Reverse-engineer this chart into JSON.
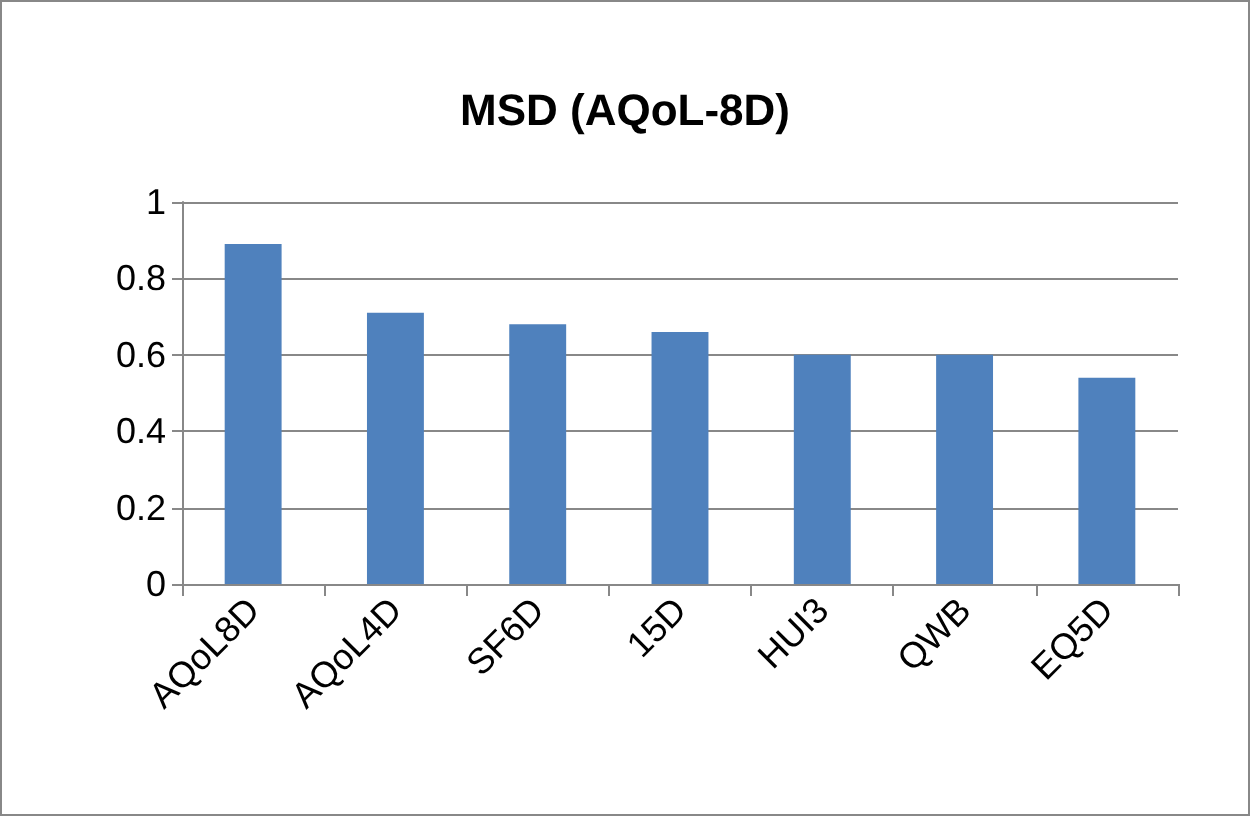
{
  "chart_data": {
    "type": "bar",
    "title": "MSD (AQoL-8D)",
    "categories": [
      "AQoL8D",
      "AQoL4D",
      "SF6D",
      "15D",
      "HUI3",
      "QWB",
      "EQ5D"
    ],
    "values": [
      0.89,
      0.71,
      0.68,
      0.66,
      0.6,
      0.6,
      0.54
    ],
    "color": "#4f81bd",
    "ylim": [
      0,
      1
    ],
    "yticks": [
      0,
      0.2,
      0.4,
      0.6,
      0.8,
      1
    ],
    "grid": "y"
  }
}
